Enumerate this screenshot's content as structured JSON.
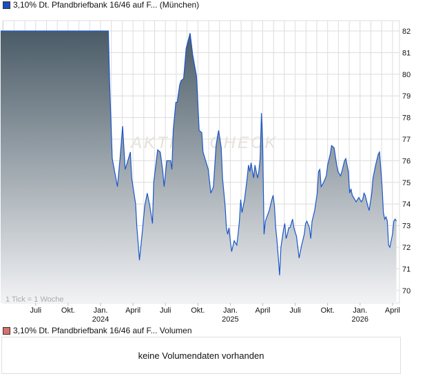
{
  "chart_data": {
    "type": "area",
    "title": "3,10% Dt. Pfandbriefbank 16/46 auf F... (München)",
    "legend_color": "#1a4fc0",
    "line_color": "#1a56c8",
    "fill_top": "#4a5b67",
    "fill_bottom": "#f2f3f5",
    "xlabel": "",
    "ylabel": "",
    "ylim": [
      69.4,
      82.5
    ],
    "xlim": [
      2023.23,
      2026.32
    ],
    "y_ticks": [
      70,
      71,
      72,
      73,
      74,
      75,
      76,
      77,
      78,
      79,
      80,
      81,
      82
    ],
    "x_ticks": [
      {
        "t": 2023.5,
        "label": "Juli",
        "year": ""
      },
      {
        "t": 2023.75,
        "label": "Okt.",
        "year": ""
      },
      {
        "t": 2024.0,
        "label": "Jan.",
        "year": "2024"
      },
      {
        "t": 2024.25,
        "label": "April",
        "year": ""
      },
      {
        "t": 2024.5,
        "label": "Juli",
        "year": ""
      },
      {
        "t": 2024.75,
        "label": "Okt.",
        "year": ""
      },
      {
        "t": 2025.0,
        "label": "Jan.",
        "year": "2025"
      },
      {
        "t": 2025.25,
        "label": "April",
        "year": ""
      },
      {
        "t": 2025.5,
        "label": "Juli",
        "year": ""
      },
      {
        "t": 2025.75,
        "label": "Okt.",
        "year": ""
      },
      {
        "t": 2026.0,
        "label": "Jan.",
        "year": "2026"
      },
      {
        "t": 2026.25,
        "label": "April",
        "year": ""
      }
    ],
    "tick_note": "1 Tick = 1 Woche",
    "watermark": "AKTIEN CHECK",
    "grid": true,
    "points": [
      [
        2023.23,
        82.0
      ],
      [
        2024.06,
        82.0
      ],
      [
        2024.07,
        79.6
      ],
      [
        2024.09,
        76.1
      ],
      [
        2024.13,
        74.8
      ],
      [
        2024.15,
        76.1
      ],
      [
        2024.17,
        77.6
      ],
      [
        2024.19,
        75.6
      ],
      [
        2024.21,
        76.0
      ],
      [
        2024.23,
        76.4
      ],
      [
        2024.24,
        75.2
      ],
      [
        2024.27,
        74.0
      ],
      [
        2024.28,
        72.9
      ],
      [
        2024.3,
        71.4
      ],
      [
        2024.32,
        72.6
      ],
      [
        2024.34,
        73.9
      ],
      [
        2024.36,
        74.5
      ],
      [
        2024.38,
        73.9
      ],
      [
        2024.4,
        73.1
      ],
      [
        2024.41,
        75.0
      ],
      [
        2024.44,
        76.5
      ],
      [
        2024.46,
        76.4
      ],
      [
        2024.48,
        75.5
      ],
      [
        2024.49,
        74.8
      ],
      [
        2024.51,
        76.0
      ],
      [
        2024.54,
        76.0
      ],
      [
        2024.55,
        75.6
      ],
      [
        2024.56,
        77.4
      ],
      [
        2024.58,
        78.7
      ],
      [
        2024.59,
        78.7
      ],
      [
        2024.61,
        79.5
      ],
      [
        2024.62,
        79.7
      ],
      [
        2024.64,
        79.8
      ],
      [
        2024.66,
        81.2
      ],
      [
        2024.69,
        81.9
      ],
      [
        2024.71,
        80.9
      ],
      [
        2024.74,
        79.9
      ],
      [
        2024.76,
        77.4
      ],
      [
        2024.78,
        77.3
      ],
      [
        2024.79,
        76.4
      ],
      [
        2024.81,
        76.0
      ],
      [
        2024.83,
        75.6
      ],
      [
        2024.85,
        74.5
      ],
      [
        2024.87,
        74.8
      ],
      [
        2024.89,
        76.7
      ],
      [
        2024.91,
        77.4
      ],
      [
        2024.93,
        76.6
      ],
      [
        2024.94,
        75.2
      ],
      [
        2024.96,
        73.9
      ],
      [
        2024.97,
        72.9
      ],
      [
        2024.98,
        72.6
      ],
      [
        2024.99,
        72.9
      ],
      [
        2025.0,
        72.3
      ],
      [
        2025.01,
        71.8
      ],
      [
        2025.03,
        72.3
      ],
      [
        2025.05,
        72.1
      ],
      [
        2025.06,
        72.6
      ],
      [
        2025.07,
        73.2
      ],
      [
        2025.08,
        74.2
      ],
      [
        2025.09,
        73.6
      ],
      [
        2025.11,
        74.2
      ],
      [
        2025.13,
        75.2
      ],
      [
        2025.14,
        75.8
      ],
      [
        2025.15,
        75.5
      ],
      [
        2025.16,
        75.9
      ],
      [
        2025.18,
        75.2
      ],
      [
        2025.19,
        75.8
      ],
      [
        2025.21,
        75.2
      ],
      [
        2025.22,
        75.5
      ],
      [
        2025.23,
        76.1
      ],
      [
        2025.24,
        78.2
      ],
      [
        2025.25,
        76.7
      ],
      [
        2025.26,
        72.6
      ],
      [
        2025.27,
        73.2
      ],
      [
        2025.3,
        73.7
      ],
      [
        2025.32,
        74.2
      ],
      [
        2025.33,
        74.4
      ],
      [
        2025.34,
        73.9
      ],
      [
        2025.35,
        72.9
      ],
      [
        2025.36,
        72.3
      ],
      [
        2025.38,
        70.7
      ],
      [
        2025.39,
        72.0
      ],
      [
        2025.41,
        72.8
      ],
      [
        2025.42,
        73.1
      ],
      [
        2025.43,
        72.4
      ],
      [
        2025.44,
        72.6
      ],
      [
        2025.45,
        72.9
      ],
      [
        2025.46,
        72.9
      ],
      [
        2025.48,
        73.3
      ],
      [
        2025.49,
        72.9
      ],
      [
        2025.51,
        72.5
      ],
      [
        2025.52,
        72.0
      ],
      [
        2025.53,
        71.5
      ],
      [
        2025.55,
        72.1
      ],
      [
        2025.57,
        72.6
      ],
      [
        2025.58,
        73.1
      ],
      [
        2025.59,
        73.2
      ],
      [
        2025.61,
        72.9
      ],
      [
        2025.62,
        72.4
      ],
      [
        2025.63,
        73.2
      ],
      [
        2025.65,
        73.7
      ],
      [
        2025.67,
        74.5
      ],
      [
        2025.68,
        75.5
      ],
      [
        2025.69,
        75.6
      ],
      [
        2025.7,
        74.8
      ],
      [
        2025.72,
        75.0
      ],
      [
        2025.74,
        75.3
      ],
      [
        2025.75,
        75.8
      ],
      [
        2025.77,
        76.3
      ],
      [
        2025.78,
        76.7
      ],
      [
        2025.8,
        76.6
      ],
      [
        2025.82,
        75.8
      ],
      [
        2025.83,
        75.5
      ],
      [
        2025.85,
        75.3
      ],
      [
        2025.86,
        75.5
      ],
      [
        2025.88,
        76.0
      ],
      [
        2025.89,
        76.1
      ],
      [
        2025.91,
        75.5
      ],
      [
        2025.92,
        74.5
      ],
      [
        2025.93,
        74.7
      ],
      [
        2025.94,
        74.4
      ],
      [
        2025.96,
        74.2
      ],
      [
        2025.97,
        74.1
      ],
      [
        2025.99,
        74.3
      ],
      [
        2026.01,
        74.1
      ],
      [
        2026.02,
        74.2
      ],
      [
        2026.03,
        74.5
      ],
      [
        2026.04,
        74.4
      ],
      [
        2026.06,
        73.9
      ],
      [
        2026.07,
        73.7
      ],
      [
        2026.09,
        74.5
      ],
      [
        2026.1,
        75.2
      ],
      [
        2026.12,
        75.8
      ],
      [
        2026.14,
        76.3
      ],
      [
        2026.15,
        76.4
      ],
      [
        2026.17,
        74.8
      ],
      [
        2026.18,
        73.6
      ],
      [
        2026.19,
        73.3
      ],
      [
        2026.2,
        73.4
      ],
      [
        2026.21,
        73.2
      ],
      [
        2026.22,
        72.1
      ],
      [
        2026.23,
        72.0
      ],
      [
        2026.25,
        72.6
      ],
      [
        2026.26,
        73.2
      ],
      [
        2026.27,
        73.3
      ],
      [
        2026.28,
        73.2
      ]
    ]
  },
  "volume": {
    "legend": "3,10% Dt. Pfandbriefbank 16/46 auf F... Volumen",
    "legend_color": "#d9706e",
    "empty_message": "keine Volumendaten vorhanden"
  }
}
